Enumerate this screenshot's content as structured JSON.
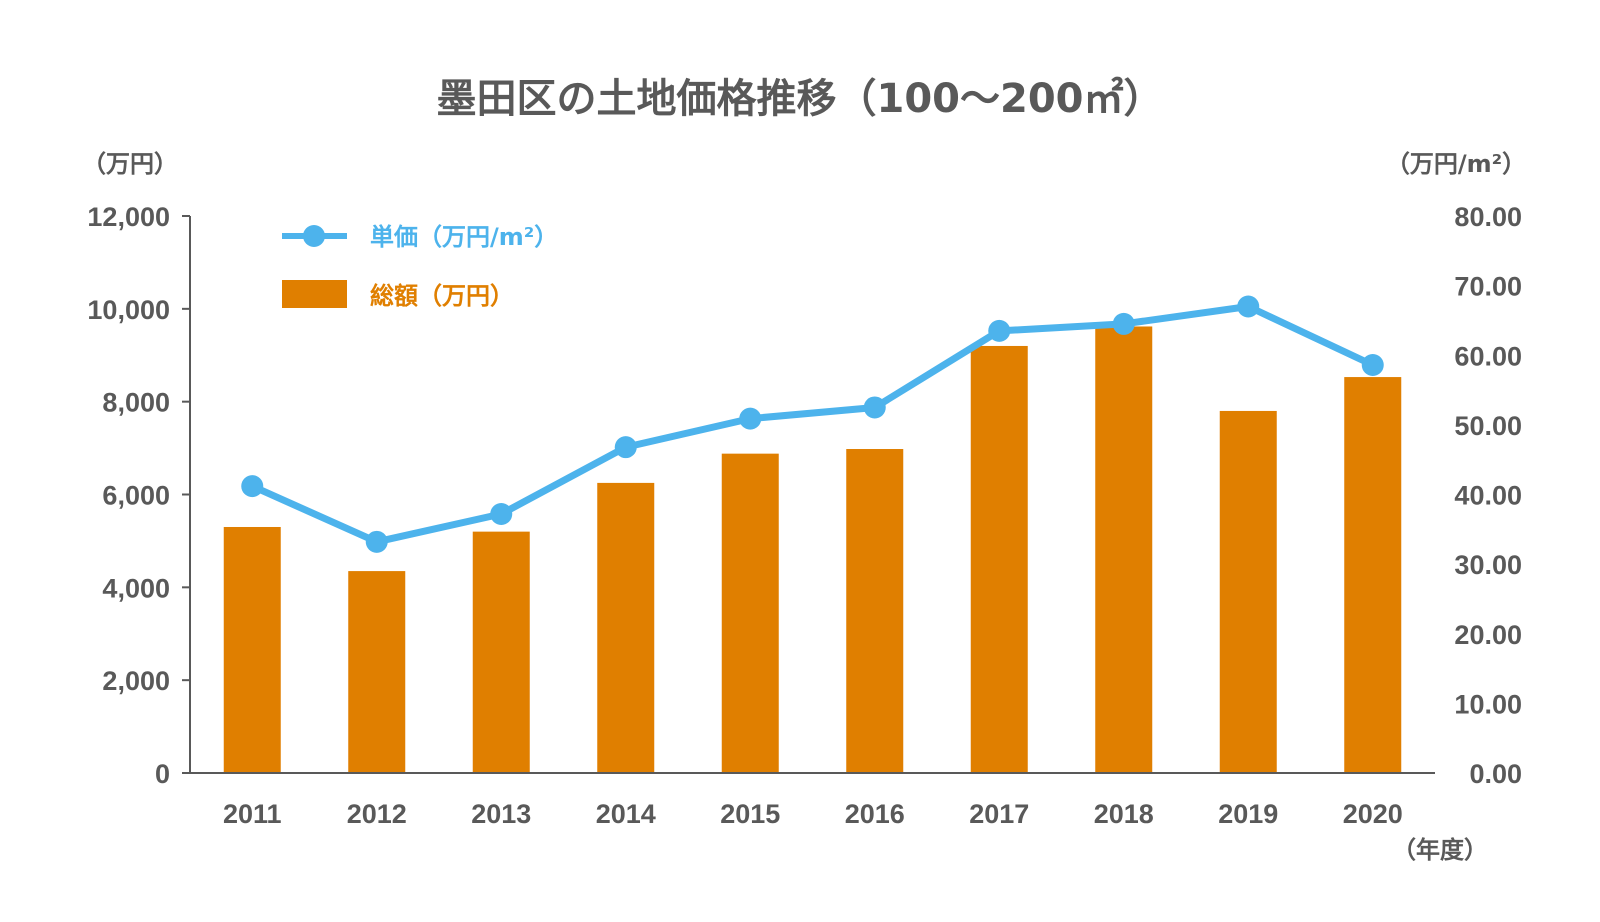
{
  "chart_data": {
    "type": "bar",
    "title": "墨田区の土地価格推移（100〜200㎡）",
    "categories": [
      "2011",
      "2012",
      "2013",
      "2014",
      "2015",
      "2016",
      "2017",
      "2018",
      "2019",
      "2020"
    ],
    "x_unit": "（年度）",
    "y_left": {
      "unit": "（万円）",
      "range": [
        0,
        12000
      ],
      "ticks": [
        "0",
        "2,000",
        "4,000",
        "6,000",
        "8,000",
        "10,000",
        "12,000"
      ]
    },
    "y_right": {
      "unit": "（万円/m²）",
      "range": [
        0,
        80
      ],
      "ticks": [
        "0.00",
        "10.00",
        "20.00",
        "30.00",
        "40.00",
        "50.00",
        "60.00",
        "70.00",
        "80.00"
      ]
    },
    "series": [
      {
        "name": "総額（万円）",
        "type": "bar",
        "axis": "left",
        "color": "#e07f00",
        "values": [
          5300,
          4350,
          5200,
          6250,
          6880,
          6980,
          9200,
          9620,
          7800,
          8530
        ]
      },
      {
        "name": "単価（万円/m²）",
        "type": "line",
        "axis": "right",
        "color": "#4db3ec",
        "values": [
          41.2,
          33.2,
          37.2,
          46.8,
          50.9,
          52.5,
          63.5,
          64.5,
          67.0,
          58.6
        ]
      }
    ],
    "legend": "top-left",
    "grid": false
  }
}
